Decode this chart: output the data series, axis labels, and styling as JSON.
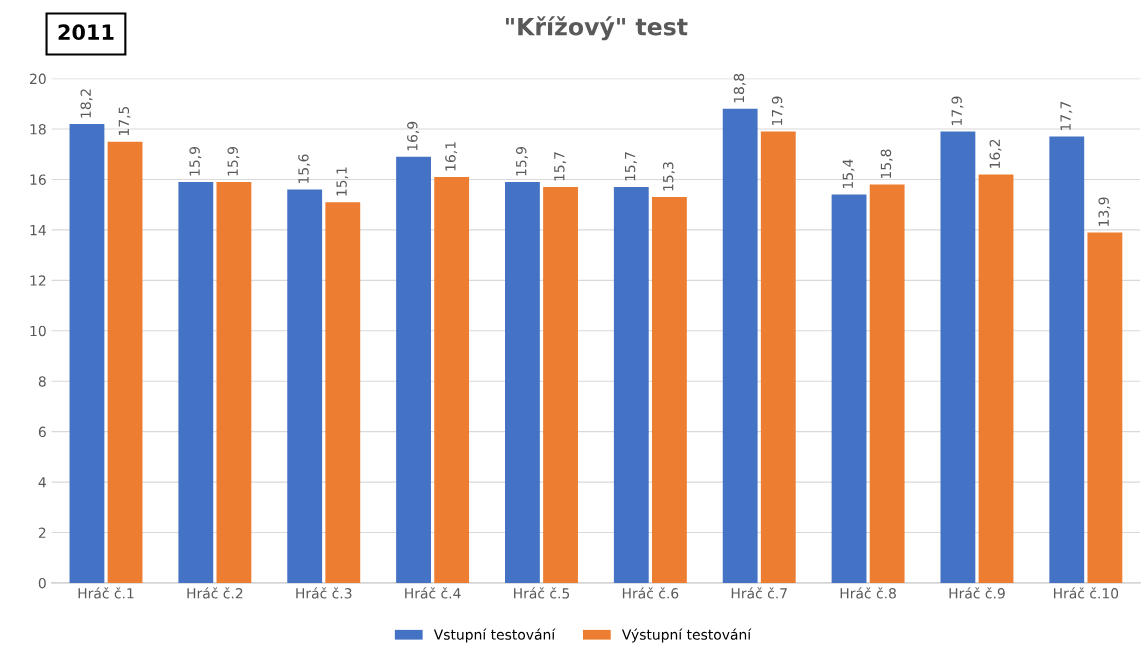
{
  "chart_data": {
    "type": "bar",
    "title": "\"Křížový\" test",
    "annotations": [
      "2011"
    ],
    "categories": [
      "Hráč č.1",
      "Hráč č.2",
      "Hráč č.3",
      "Hráč č.4",
      "Hráč č.5",
      "Hráč č.6",
      "Hráč č.7",
      "Hráč č.8",
      "Hráč č.9",
      "Hráč č.10"
    ],
    "series": [
      {
        "name": "Vstupní testování",
        "color": "#4472c4",
        "values": [
          18.2,
          15.9,
          15.6,
          16.9,
          15.9,
          15.7,
          18.8,
          15.4,
          17.9,
          17.7
        ],
        "value_labels": [
          "18,2",
          "15,9",
          "15,6",
          "16,9",
          "15,9",
          "15,7",
          "18,8",
          "15,4",
          "17,9",
          "17,7"
        ]
      },
      {
        "name": "Výstupní testování",
        "color": "#ed7d31",
        "values": [
          17.5,
          15.9,
          15.1,
          16.1,
          15.7,
          15.3,
          17.9,
          15.8,
          16.2,
          13.9
        ],
        "value_labels": [
          "17,5",
          "15,9",
          "15,1",
          "16,1",
          "15,7",
          "15,3",
          "17,9",
          "15,8",
          "16,2",
          "13,9"
        ]
      }
    ],
    "ylim": [
      0,
      20
    ],
    "yticks": [
      0,
      2,
      4,
      6,
      8,
      10,
      12,
      14,
      16,
      18,
      20
    ],
    "grid": "y",
    "legend": "bottom"
  }
}
